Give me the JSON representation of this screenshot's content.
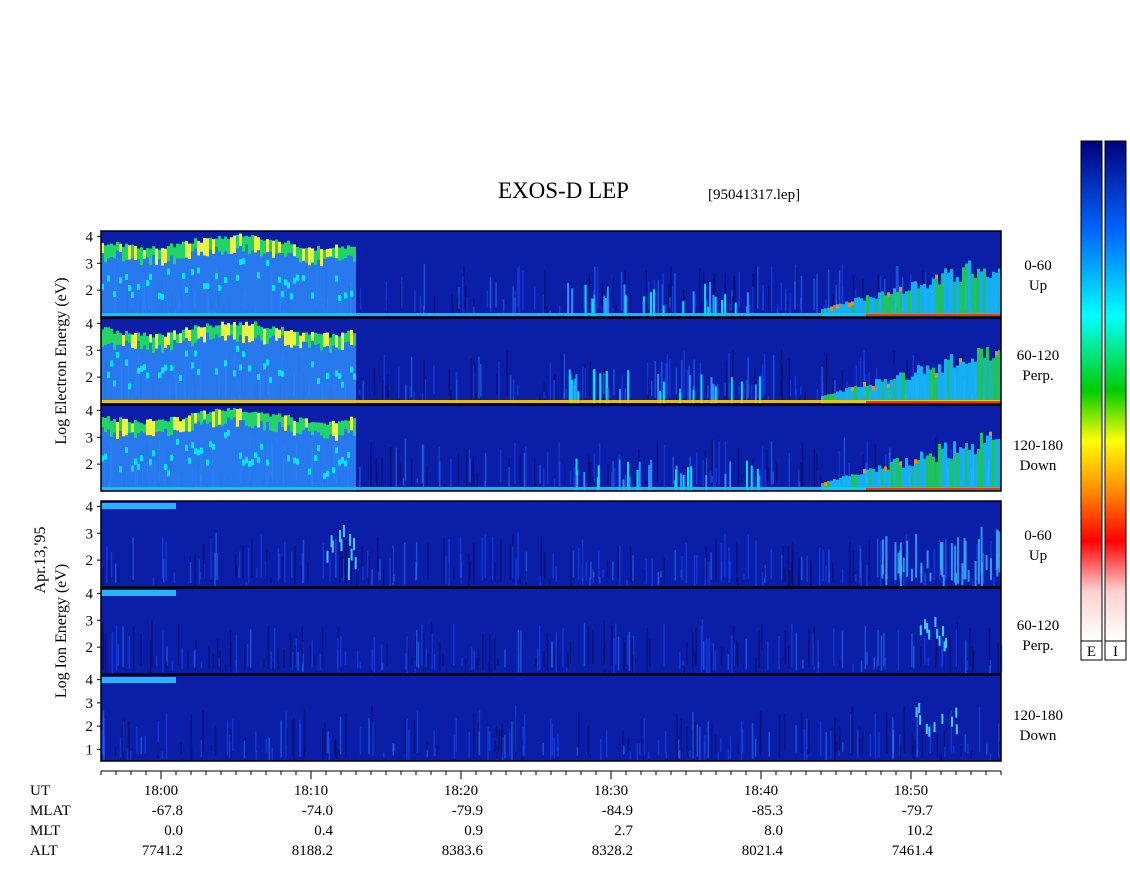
{
  "chart_data": {
    "type": "heatmap",
    "title": "EXOS-D LEP",
    "file_tag": "[95041317.lep]",
    "date_label": "Apr.13,'95",
    "x_range_minutes_ut": [
      "17:56",
      "18:56"
    ],
    "time_ticks": [
      "18:00",
      "18:10",
      "18:20",
      "18:30",
      "18:40",
      "18:50"
    ],
    "info_rows": [
      {
        "label": "UT",
        "values": []
      },
      {
        "label": "MLAT",
        "values": [
          "-67.8",
          "-74.0",
          "-79.9",
          "-84.9",
          "-85.3",
          "-79.7"
        ]
      },
      {
        "label": "MLT",
        "values": [
          "0.0",
          "0.4",
          "0.9",
          "2.7",
          "8.0",
          "10.2"
        ]
      },
      {
        "label": "ALT",
        "values": [
          "7741.2",
          "8188.2",
          "8383.6",
          "8328.2",
          "8021.4",
          "7461.4"
        ]
      }
    ],
    "groups": [
      {
        "species": "electron",
        "ylabel_lines": [
          "Log",
          "Electron",
          "Energy",
          "(eV)"
        ],
        "panels": [
          {
            "pitch": "0-60",
            "dir": "Up",
            "ylim": [
              1,
              4.2
            ],
            "y_ticks": [
              "4",
              "3",
              "2"
            ]
          },
          {
            "pitch": "60-120",
            "dir": "Perp.",
            "ylim": [
              1,
              4.2
            ],
            "y_ticks": [
              "4",
              "3",
              "2"
            ]
          },
          {
            "pitch": "120-180",
            "dir": "Down",
            "ylim": [
              1,
              4.2
            ],
            "y_ticks": [
              "4",
              "3",
              "2"
            ]
          }
        ]
      },
      {
        "species": "ion",
        "ylabel_lines": [
          "Log",
          "Ion",
          "Energy",
          "(eV)"
        ],
        "panels": [
          {
            "pitch": "0-60",
            "dir": "Up",
            "ylim": [
              1,
              4.2
            ],
            "y_ticks": [
              "4",
              "3",
              "2"
            ]
          },
          {
            "pitch": "60-120",
            "dir": "Perp.",
            "ylim": [
              1,
              4.2
            ],
            "y_ticks": [
              "4",
              "3",
              "2"
            ]
          },
          {
            "pitch": "120-180",
            "dir": "Down",
            "ylim": [
              0.5,
              4.2
            ],
            "y_ticks": [
              "4",
              "3",
              "2",
              "1"
            ]
          }
        ]
      }
    ],
    "colorbars": [
      {
        "label": "E"
      },
      {
        "label": "I"
      }
    ],
    "colormap": [
      "#ffffff",
      "#ff0000",
      "#ff8c00",
      "#ffff00",
      "#00cc00",
      "#00ffff",
      "#0066ff",
      "#000080"
    ],
    "background_color": "#0a1ea8"
  }
}
